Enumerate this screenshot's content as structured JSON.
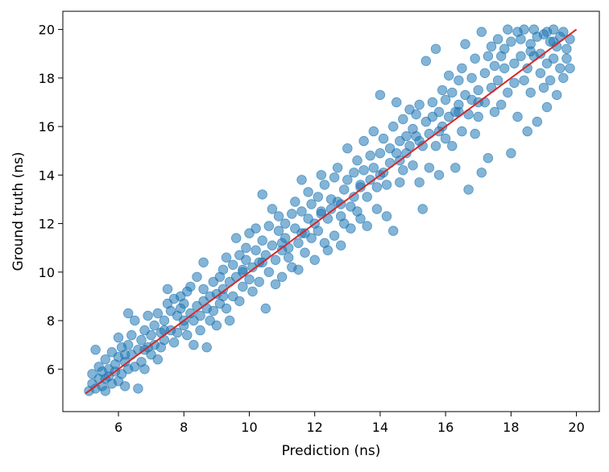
{
  "chart_data": {
    "type": "scatter",
    "title": "",
    "xlabel": "Prediction (ns)",
    "ylabel": "Ground truth (ns)",
    "xlim": [
      4.3,
      20.7
    ],
    "ylim": [
      4.25,
      20.75
    ],
    "xticks": [
      6,
      8,
      10,
      12,
      14,
      16,
      18,
      20
    ],
    "yticks": [
      6,
      8,
      10,
      12,
      14,
      16,
      18,
      20
    ],
    "grid": false,
    "legend": "none",
    "colors": {
      "points": "#1f77b4",
      "line": "#d62728"
    },
    "reference_line": {
      "x": [
        5,
        20
      ],
      "y": [
        5,
        20
      ]
    },
    "series": [
      {
        "values_xy": [
          [
            5.1,
            5.1
          ],
          [
            5.2,
            5.4
          ],
          [
            5.3,
            5.2
          ],
          [
            5.2,
            5.8
          ],
          [
            5.3,
            6.8
          ],
          [
            5.4,
            5.6
          ],
          [
            5.4,
            6.1
          ],
          [
            5.5,
            5.3
          ],
          [
            5.5,
            5.9
          ],
          [
            5.6,
            5.1
          ],
          [
            5.6,
            6.4
          ],
          [
            5.7,
            5.7
          ],
          [
            5.7,
            6.0
          ],
          [
            5.8,
            5.4
          ],
          [
            5.8,
            6.7
          ],
          [
            5.9,
            5.9
          ],
          [
            5.9,
            6.2
          ],
          [
            6.0,
            5.5
          ],
          [
            6.0,
            6.5
          ],
          [
            6.0,
            7.3
          ],
          [
            6.1,
            5.8
          ],
          [
            6.1,
            6.9
          ],
          [
            6.2,
            5.3
          ],
          [
            6.2,
            6.3
          ],
          [
            6.3,
            6.0
          ],
          [
            6.3,
            7.0
          ],
          [
            6.3,
            8.3
          ],
          [
            6.4,
            6.6
          ],
          [
            6.4,
            7.4
          ],
          [
            6.5,
            6.1
          ],
          [
            6.5,
            8.0
          ],
          [
            6.6,
            6.8
          ],
          [
            6.6,
            5.2
          ],
          [
            6.7,
            7.2
          ],
          [
            6.7,
            6.3
          ],
          [
            6.8,
            7.6
          ],
          [
            6.8,
            6.0
          ],
          [
            6.9,
            6.9
          ],
          [
            6.9,
            8.2
          ],
          [
            7.0,
            6.6
          ],
          [
            7.0,
            7.4
          ],
          [
            7.1,
            7.0
          ],
          [
            7.1,
            7.8
          ],
          [
            7.2,
            6.4
          ],
          [
            7.2,
            8.3
          ],
          [
            7.3,
            7.5
          ],
          [
            7.3,
            6.9
          ],
          [
            7.4,
            8.0
          ],
          [
            7.4,
            7.2
          ],
          [
            7.5,
            8.7
          ],
          [
            7.5,
            9.3
          ],
          [
            7.6,
            7.6
          ],
          [
            7.6,
            8.4
          ],
          [
            7.7,
            7.1
          ],
          [
            7.7,
            8.9
          ],
          [
            7.8,
            8.2
          ],
          [
            7.8,
            7.5
          ],
          [
            7.9,
            9.0
          ],
          [
            7.9,
            8.5
          ],
          [
            8.0,
            7.8
          ],
          [
            8.0,
            8.7
          ],
          [
            8.1,
            9.2
          ],
          [
            8.1,
            7.4
          ],
          [
            8.2,
            8.3
          ],
          [
            8.2,
            9.4
          ],
          [
            8.3,
            8.0
          ],
          [
            8.3,
            7.0
          ],
          [
            8.4,
            8.6
          ],
          [
            8.4,
            9.8
          ],
          [
            8.5,
            8.2
          ],
          [
            8.5,
            7.6
          ],
          [
            8.6,
            9.3
          ],
          [
            8.6,
            10.4
          ],
          [
            8.7,
            8.5
          ],
          [
            8.7,
            6.9
          ],
          [
            8.8,
            9.0
          ],
          [
            8.8,
            8.0
          ],
          [
            8.9,
            9.6
          ],
          [
            8.9,
            8.4
          ],
          [
            9.0,
            9.1
          ],
          [
            9.0,
            7.8
          ],
          [
            9.1,
            9.8
          ],
          [
            9.1,
            8.7
          ],
          [
            9.2,
            10.1
          ],
          [
            9.2,
            9.3
          ],
          [
            9.3,
            8.5
          ],
          [
            9.3,
            10.6
          ],
          [
            9.4,
            9.6
          ],
          [
            9.4,
            8.0
          ],
          [
            9.5,
            10.3
          ],
          [
            9.5,
            9.0
          ],
          [
            9.6,
            11.4
          ],
          [
            9.6,
            9.8
          ],
          [
            9.7,
            10.7
          ],
          [
            9.7,
            8.8
          ],
          [
            9.8,
            10.1
          ],
          [
            9.8,
            9.4
          ],
          [
            9.9,
            11.0
          ],
          [
            9.9,
            10.5
          ],
          [
            10.0,
            9.7
          ],
          [
            10.0,
            11.6
          ],
          [
            10.1,
            10.2
          ],
          [
            10.1,
            9.2
          ],
          [
            10.2,
            10.9
          ],
          [
            10.2,
            11.8
          ],
          [
            10.3,
            10.4
          ],
          [
            10.3,
            9.6
          ],
          [
            10.4,
            11.3
          ],
          [
            10.4,
            13.2
          ],
          [
            10.5,
            10.7
          ],
          [
            10.5,
            8.5
          ],
          [
            10.6,
            11.9
          ],
          [
            10.6,
            10.0
          ],
          [
            10.7,
            12.6
          ],
          [
            10.7,
            11.1
          ],
          [
            10.8,
            10.5
          ],
          [
            10.8,
            9.5
          ],
          [
            10.9,
            11.7
          ],
          [
            10.9,
            12.3
          ],
          [
            11.0,
            10.9
          ],
          [
            11.0,
            9.8
          ],
          [
            11.1,
            11.4
          ],
          [
            11.1,
            12.0
          ],
          [
            11.2,
            10.6
          ],
          [
            11.2,
            11.0
          ],
          [
            11.3,
            12.4
          ],
          [
            11.3,
            10.2
          ],
          [
            11.4,
            11.8
          ],
          [
            11.4,
            12.9
          ],
          [
            11.5,
            11.2
          ],
          [
            11.5,
            10.1
          ],
          [
            11.6,
            12.5
          ],
          [
            11.6,
            13.8
          ],
          [
            11.7,
            11.6
          ],
          [
            11.7,
            10.8
          ],
          [
            11.8,
            12.2
          ],
          [
            11.8,
            13.3
          ],
          [
            11.9,
            11.4
          ],
          [
            11.9,
            12.8
          ],
          [
            12.0,
            12.0
          ],
          [
            12.0,
            10.5
          ],
          [
            12.1,
            13.1
          ],
          [
            12.1,
            11.7
          ],
          [
            12.2,
            12.5
          ],
          [
            12.2,
            14.0
          ],
          [
            12.3,
            11.2
          ],
          [
            12.3,
            13.6
          ],
          [
            12.4,
            12.2
          ],
          [
            12.4,
            10.9
          ],
          [
            12.5,
            13.0
          ],
          [
            12.5,
            12.6
          ],
          [
            12.6,
            13.9
          ],
          [
            12.6,
            11.5
          ],
          [
            12.7,
            12.9
          ],
          [
            12.7,
            14.3
          ],
          [
            12.8,
            12.3
          ],
          [
            12.8,
            11.1
          ],
          [
            12.9,
            13.4
          ],
          [
            12.9,
            12.0
          ],
          [
            13.0,
            13.8
          ],
          [
            13.0,
            15.1
          ],
          [
            13.1,
            12.7
          ],
          [
            13.1,
            11.8
          ],
          [
            13.2,
            14.1
          ],
          [
            13.2,
            13.1
          ],
          [
            13.3,
            12.5
          ],
          [
            13.3,
            14.6
          ],
          [
            13.4,
            13.5
          ],
          [
            13.4,
            12.2
          ],
          [
            13.5,
            14.2
          ],
          [
            13.5,
            15.4
          ],
          [
            13.6,
            13.1
          ],
          [
            13.6,
            11.9
          ],
          [
            13.7,
            14.8
          ],
          [
            13.7,
            13.8
          ],
          [
            13.8,
            14.3
          ],
          [
            13.8,
            15.8
          ],
          [
            13.9,
            13.5
          ],
          [
            13.9,
            12.6
          ],
          [
            14.0,
            14.9
          ],
          [
            14.0,
            17.3
          ],
          [
            14.1,
            14.1
          ],
          [
            14.1,
            15.5
          ],
          [
            14.2,
            13.6
          ],
          [
            14.2,
            12.3
          ],
          [
            14.3,
            15.1
          ],
          [
            14.3,
            14.5
          ],
          [
            14.4,
            16.0
          ],
          [
            14.4,
            11.7
          ],
          [
            14.5,
            14.9
          ],
          [
            14.5,
            17.0
          ],
          [
            14.6,
            15.4
          ],
          [
            14.6,
            13.7
          ],
          [
            14.7,
            16.3
          ],
          [
            14.7,
            14.2
          ],
          [
            14.8,
            15.6
          ],
          [
            14.8,
            14.9
          ],
          [
            14.9,
            16.7
          ],
          [
            14.9,
            15.2
          ],
          [
            15.0,
            15.9
          ],
          [
            15.0,
            14.4
          ],
          [
            15.1,
            16.5
          ],
          [
            15.1,
            15.6
          ],
          [
            15.2,
            13.7
          ],
          [
            15.2,
            16.9
          ],
          [
            15.3,
            15.2
          ],
          [
            15.3,
            12.6
          ],
          [
            15.4,
            16.2
          ],
          [
            15.4,
            18.7
          ],
          [
            15.5,
            15.7
          ],
          [
            15.5,
            14.3
          ],
          [
            15.6,
            17.0
          ],
          [
            15.6,
            16.4
          ],
          [
            15.7,
            19.2
          ],
          [
            15.7,
            15.2
          ],
          [
            15.8,
            16.6
          ],
          [
            15.8,
            14.0
          ],
          [
            15.9,
            17.5
          ],
          [
            15.9,
            16.0
          ],
          [
            16.0,
            15.5
          ],
          [
            16.0,
            17.1
          ],
          [
            16.1,
            16.4
          ],
          [
            16.1,
            18.1
          ],
          [
            16.2,
            15.2
          ],
          [
            16.2,
            17.4
          ],
          [
            16.3,
            16.6
          ],
          [
            16.3,
            14.3
          ],
          [
            16.4,
            17.9
          ],
          [
            16.4,
            16.9
          ],
          [
            16.5,
            18.4
          ],
          [
            16.5,
            15.8
          ],
          [
            16.6,
            17.3
          ],
          [
            16.6,
            19.4
          ],
          [
            16.7,
            16.5
          ],
          [
            16.7,
            13.4
          ],
          [
            16.8,
            18.0
          ],
          [
            16.8,
            17.1
          ],
          [
            16.9,
            15.7
          ],
          [
            16.9,
            18.8
          ],
          [
            17.0,
            17.5
          ],
          [
            17.0,
            16.4
          ],
          [
            17.1,
            19.9
          ],
          [
            17.1,
            14.1
          ],
          [
            17.2,
            18.2
          ],
          [
            17.2,
            17.0
          ],
          [
            17.3,
            18.9
          ],
          [
            17.3,
            14.7
          ],
          [
            17.4,
            17.6
          ],
          [
            17.4,
            19.3
          ],
          [
            17.5,
            18.5
          ],
          [
            17.5,
            16.6
          ],
          [
            17.6,
            19.6
          ],
          [
            17.6,
            17.9
          ],
          [
            17.7,
            18.9
          ],
          [
            17.7,
            16.9
          ],
          [
            17.8,
            19.2
          ],
          [
            17.8,
            18.4
          ],
          [
            17.9,
            20.0
          ],
          [
            17.9,
            17.4
          ],
          [
            18.0,
            19.5
          ],
          [
            18.0,
            14.9
          ],
          [
            18.1,
            18.6
          ],
          [
            18.1,
            17.8
          ],
          [
            18.2,
            19.9
          ],
          [
            18.2,
            16.4
          ],
          [
            18.3,
            18.9
          ],
          [
            18.3,
            19.6
          ],
          [
            18.4,
            17.9
          ],
          [
            18.4,
            20.0
          ],
          [
            18.5,
            18.4
          ],
          [
            18.5,
            15.8
          ],
          [
            18.6,
            19.4
          ],
          [
            18.6,
            17.4
          ],
          [
            18.7,
            18.9
          ],
          [
            18.7,
            20.0
          ],
          [
            18.8,
            16.2
          ],
          [
            18.8,
            19.7
          ],
          [
            18.9,
            18.2
          ],
          [
            18.9,
            19.0
          ],
          [
            19.0,
            17.6
          ],
          [
            19.0,
            19.8
          ],
          [
            19.1,
            18.6
          ],
          [
            19.1,
            16.8
          ],
          [
            19.2,
            19.5
          ],
          [
            19.2,
            17.9
          ],
          [
            19.3,
            20.0
          ],
          [
            19.3,
            18.8
          ],
          [
            19.4,
            19.3
          ],
          [
            19.4,
            17.3
          ],
          [
            19.5,
            18.4
          ],
          [
            19.5,
            19.7
          ],
          [
            19.6,
            18.0
          ],
          [
            19.6,
            19.9
          ],
          [
            19.7,
            18.8
          ],
          [
            19.7,
            19.2
          ],
          [
            19.8,
            18.4
          ],
          [
            19.8,
            19.6
          ],
          [
            19.1,
            19.9
          ],
          [
            18.6,
            19.1
          ],
          [
            19.3,
            19.5
          ],
          [
            5.6,
            5.6
          ],
          [
            6.2,
            6.6
          ],
          [
            6.8,
            6.8
          ],
          [
            7.4,
            7.6
          ],
          [
            8.0,
            8.0
          ],
          [
            8.6,
            8.8
          ],
          [
            9.2,
            9.0
          ],
          [
            9.8,
            10.0
          ],
          [
            10.4,
            10.4
          ],
          [
            11.0,
            11.2
          ],
          [
            11.6,
            11.6
          ],
          [
            12.2,
            12.4
          ],
          [
            12.8,
            12.8
          ],
          [
            13.4,
            13.6
          ],
          [
            14.0,
            14.0
          ],
          [
            14.6,
            14.6
          ],
          [
            15.2,
            15.4
          ],
          [
            15.8,
            15.8
          ],
          [
            16.4,
            16.6
          ],
          [
            17.0,
            17.0
          ]
        ]
      }
    ]
  }
}
